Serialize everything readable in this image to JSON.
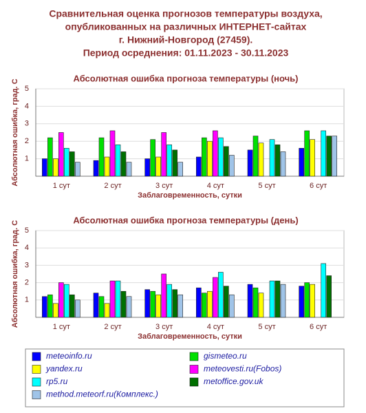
{
  "title": [
    "Сравнительная оценка прогнозов температуры воздуха,",
    "опубликованных на различных ИНТЕРНЕТ-сайтах",
    "г. Нижний-Новгород (27459).",
    "Период осреднения: 01.11.2023 - 30.11.2023"
  ],
  "chart_data": [
    {
      "type": "bar",
      "title": "Абсолютная ошибка прогноза температуры (ночь)",
      "y_label": "Абсолютная ошибка, град. С",
      "x_label": "Заблаговременность, сутки",
      "categories": [
        "1 сут",
        "2 сут",
        "3 сут",
        "4 сут",
        "5 сут",
        "6 сут"
      ],
      "ylim": [
        0,
        5
      ],
      "yticks": [
        1,
        2,
        3,
        4,
        5
      ],
      "grid": true,
      "series": [
        {
          "name": "meteoinfo.ru",
          "color": "#0000ff",
          "values": [
            1.0,
            0.9,
            1.0,
            1.1,
            1.5,
            1.6
          ]
        },
        {
          "name": "gismeteo.ru",
          "color": "#00e000",
          "values": [
            2.2,
            2.2,
            2.1,
            2.2,
            2.3,
            2.6
          ]
        },
        {
          "name": "yandex.ru",
          "color": "#ffff00",
          "values": [
            1.0,
            1.1,
            1.1,
            2.0,
            1.9,
            2.1
          ]
        },
        {
          "name": "meteovesti.ru(Fobos)",
          "color": "#ff00ff",
          "values": [
            2.5,
            2.6,
            2.5,
            2.6,
            null,
            null
          ]
        },
        {
          "name": "rp5.ru",
          "color": "#00ffff",
          "values": [
            1.6,
            1.8,
            1.8,
            2.2,
            2.1,
            2.6
          ]
        },
        {
          "name": "metoffice.gov.uk",
          "color": "#007000",
          "values": [
            1.4,
            1.4,
            1.5,
            1.7,
            1.8,
            2.3
          ]
        },
        {
          "name": "method.meteorf.ru(Комплекс.)",
          "color": "#a0c4e8",
          "values": [
            0.8,
            0.8,
            0.8,
            1.2,
            1.4,
            2.3
          ]
        }
      ]
    },
    {
      "type": "bar",
      "title": "Абсолютная ошибка прогноза температуры (день)",
      "y_label": "Абсолютная ошибка, град. С",
      "x_label": "Заблаговременность, сутки",
      "categories": [
        "1 сут",
        "2 сут",
        "3 сут",
        "4 сут",
        "5 сут",
        "6 сут"
      ],
      "ylim": [
        0,
        5
      ],
      "yticks": [
        1,
        2,
        3,
        4,
        5
      ],
      "grid": true,
      "series": [
        {
          "color": "#0000ff",
          "values": [
            1.2,
            1.4,
            1.6,
            1.7,
            1.9,
            1.8
          ]
        },
        {
          "color": "#00e000",
          "values": [
            1.3,
            1.2,
            1.5,
            1.4,
            1.7,
            2.0
          ]
        },
        {
          "color": "#ffff00",
          "values": [
            0.8,
            0.8,
            1.3,
            1.5,
            1.4,
            1.9
          ]
        },
        {
          "color": "#ff00ff",
          "values": [
            2.0,
            2.1,
            2.5,
            2.3,
            null,
            null
          ]
        },
        {
          "color": "#00ffff",
          "values": [
            1.9,
            2.1,
            1.9,
            2.6,
            2.1,
            3.1
          ]
        },
        {
          "color": "#007000",
          "values": [
            1.3,
            1.5,
            1.6,
            1.8,
            2.1,
            2.4
          ]
        },
        {
          "color": "#a0c4e8",
          "values": [
            1.0,
            1.2,
            1.3,
            1.3,
            1.9,
            null
          ]
        }
      ]
    }
  ]
}
